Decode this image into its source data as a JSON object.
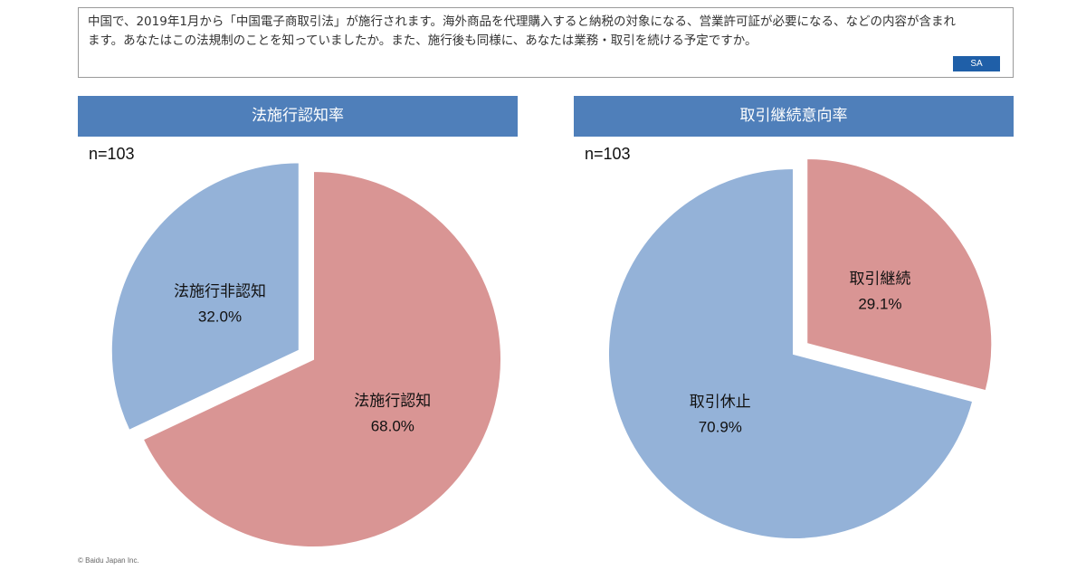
{
  "question": {
    "text": "中国で、2019年1月から「中国電子商取引法」が施行されます。海外商品を代理購入すると納税の対象になる、営業許可証が必要になる、などの内容が含まれます。あなたはこの法規制のことを知っていましたか。また、施行後も同様に、あなたは業務・取引を続ける予定ですか。",
    "badge": "SA"
  },
  "footer": "© Baidu Japan Inc.",
  "colors": {
    "blue": "#94b2d8",
    "red": "#d99594",
    "header": "#4f7fba",
    "badge": "#1f5fa8"
  },
  "chart_data": [
    {
      "type": "pie",
      "title": "法施行認知率",
      "n_label": "n=103",
      "slices": [
        {
          "label": "法施行認知",
          "value": 68.0,
          "value_label": "68.0%",
          "color": "#d99594",
          "exploded": false
        },
        {
          "label": "法施行非認知",
          "value": 32.0,
          "value_label": "32.0%",
          "color": "#94b2d8",
          "exploded": true
        }
      ]
    },
    {
      "type": "pie",
      "title": "取引継続意向率",
      "n_label": "n=103",
      "slices": [
        {
          "label": "取引継続",
          "value": 29.1,
          "value_label": "29.1%",
          "color": "#d99594",
          "exploded": true
        },
        {
          "label": "取引休止",
          "value": 70.9,
          "value_label": "70.9%",
          "color": "#94b2d8",
          "exploded": false
        }
      ]
    }
  ]
}
